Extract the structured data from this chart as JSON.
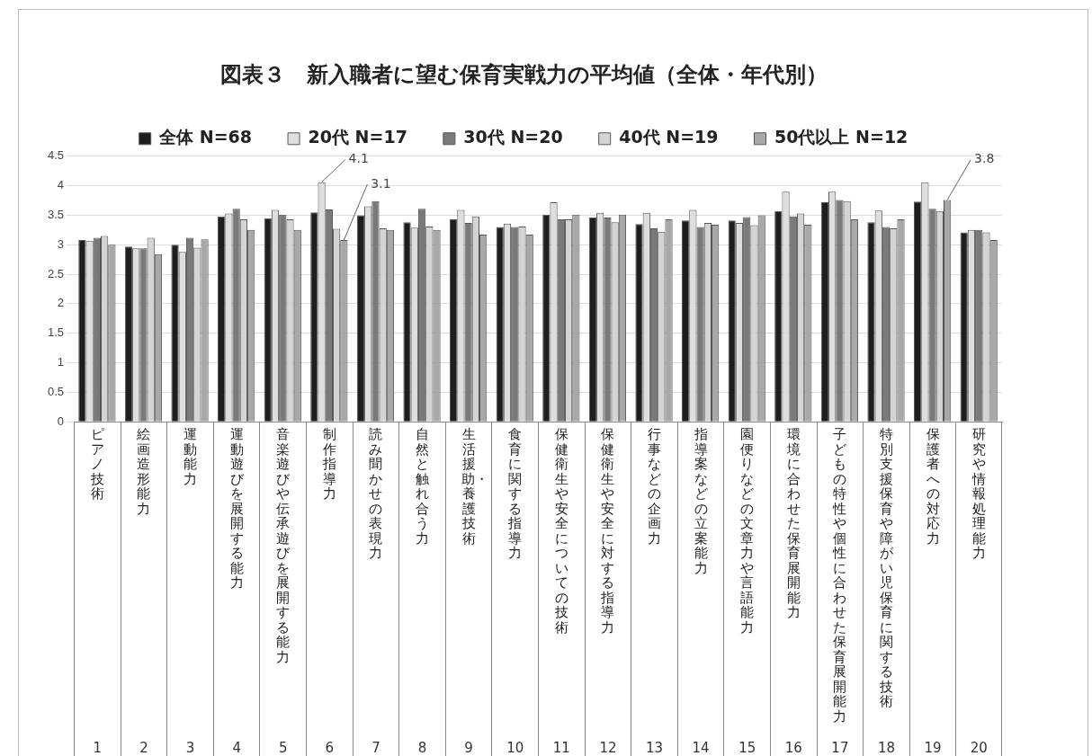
{
  "chart_data": {
    "type": "bar",
    "title": "図表３　新入職者に望む保育実戦力の平均値（全体・年代別）",
    "categories": [
      "ピアノ技術\n1",
      "絵画造形能力\n2",
      "運動能力\n3",
      "運動遊びを展開する能力\n4",
      "音楽遊びや伝承遊びを展開する能力\n5",
      "制作指導力\n6",
      "読み聞かせの表現力\n7",
      "自然と触れ合う力\n8",
      "生活援助・養護技術\n9",
      "食育に関する指導力\n10",
      "保健衛生や安全についての技術\n11",
      "保健衛生や安全に対する指導力\n12",
      "行事などの企画力\n13",
      "指導案などの立案能力\n14",
      "園便りなどの文章力や言語能力\n15",
      "環境に合わせた保育展開能力\n16",
      "子どもの特性や個性に合わせた保育展開能力\n17",
      "特別支援保育や障がい児保育に関する技術\n18",
      "保護者への対応力\n19",
      "研究や情報処理能力\n20"
    ],
    "series": [
      {
        "name": "全体 N=68",
        "color": "#1e1e1e",
        "values": [
          3.08,
          2.97,
          3.0,
          3.48,
          3.45,
          3.55,
          3.5,
          3.38,
          3.43,
          3.3,
          3.51,
          3.46,
          3.35,
          3.41,
          3.41,
          3.57,
          3.72,
          3.38,
          3.73,
          3.21
        ]
      },
      {
        "name": "20代 N=17",
        "color": "#dedede",
        "values": [
          3.07,
          2.94,
          2.88,
          3.53,
          3.59,
          4.06,
          3.65,
          3.29,
          3.59,
          3.36,
          3.72,
          3.54,
          3.54,
          3.59,
          3.37,
          3.9,
          3.9,
          3.58,
          4.06,
          3.25
        ],
        "value_labels": [
          null,
          null,
          null,
          null,
          null,
          "4.1",
          null,
          null,
          null,
          null,
          null,
          null,
          null,
          null,
          null,
          null,
          null,
          null,
          null,
          null
        ]
      },
      {
        "name": "30代 N=20",
        "color": "#7a7a7a",
        "values": [
          3.12,
          2.94,
          3.12,
          3.61,
          3.51,
          3.6,
          3.74,
          3.61,
          3.37,
          3.3,
          3.43,
          3.46,
          3.28,
          3.3,
          3.47,
          3.48,
          3.76,
          3.3,
          3.61,
          3.25
        ]
      },
      {
        "name": "40代 N=19",
        "color": "#d4d4d4",
        "values": [
          3.15,
          3.12,
          2.95,
          3.43,
          3.43,
          3.27,
          3.28,
          3.31,
          3.48,
          3.31,
          3.43,
          3.38,
          3.22,
          3.37,
          3.33,
          3.53,
          3.74,
          3.28,
          3.57,
          3.21
        ]
      },
      {
        "name": "50代以上 N=12",
        "color": "#a8a8a8",
        "values": [
          3.0,
          2.84,
          3.09,
          3.25,
          3.25,
          3.08,
          3.25,
          3.25,
          3.17,
          3.17,
          3.51,
          3.51,
          3.43,
          3.34,
          3.5,
          3.34,
          3.43,
          3.43,
          3.76,
          3.08
        ],
        "value_labels": [
          null,
          null,
          null,
          null,
          null,
          "3.1",
          null,
          null,
          null,
          null,
          null,
          null,
          null,
          null,
          null,
          null,
          null,
          null,
          "3.8",
          null
        ]
      }
    ],
    "ylim": [
      0,
      4.5
    ],
    "yticks": [
      0,
      0.5,
      1,
      1.5,
      2,
      2.5,
      3,
      3.5,
      4,
      4.5
    ],
    "grid": "y",
    "legend": "top"
  }
}
